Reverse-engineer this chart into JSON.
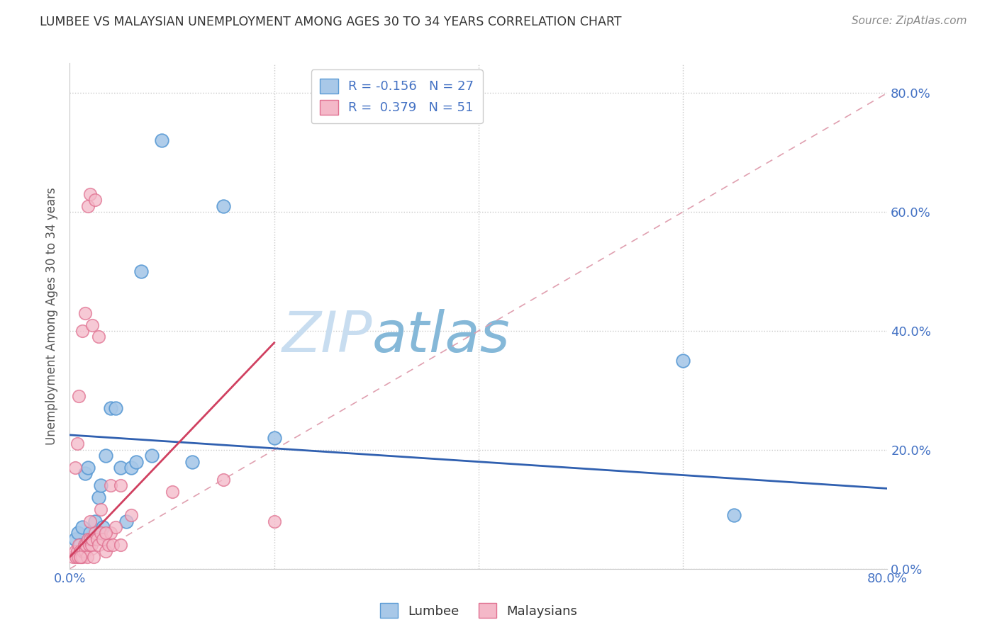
{
  "title": "LUMBEE VS MALAYSIAN UNEMPLOYMENT AMONG AGES 30 TO 34 YEARS CORRELATION CHART",
  "source": "Source: ZipAtlas.com",
  "ylabel": "Unemployment Among Ages 30 to 34 years",
  "x_min": 0.0,
  "x_max": 0.8,
  "y_min": 0.0,
  "y_max": 0.85,
  "lumbee_color": "#a8c8e8",
  "malaysian_color": "#f4b8c8",
  "lumbee_edge": "#5b9bd5",
  "malaysian_edge": "#e07090",
  "lumbee_line_color": "#3060b0",
  "malaysian_line_color": "#d04060",
  "diagonal_color": "#e0a0b0",
  "watermark_zip_color": "#c8ddf0",
  "watermark_atlas_color": "#85b8d8",
  "lumbee_x": [
    0.005,
    0.008,
    0.01,
    0.012,
    0.015,
    0.018,
    0.02,
    0.022,
    0.025,
    0.028,
    0.03,
    0.032,
    0.035,
    0.04,
    0.045,
    0.05,
    0.055,
    0.06,
    0.065,
    0.07,
    0.08,
    0.09,
    0.12,
    0.15,
    0.2,
    0.6,
    0.65
  ],
  "lumbee_y": [
    0.05,
    0.06,
    0.04,
    0.07,
    0.16,
    0.17,
    0.06,
    0.05,
    0.08,
    0.12,
    0.14,
    0.07,
    0.19,
    0.27,
    0.27,
    0.17,
    0.08,
    0.17,
    0.18,
    0.5,
    0.19,
    0.72,
    0.18,
    0.61,
    0.22,
    0.35,
    0.09
  ],
  "malaysian_x": [
    0.003,
    0.005,
    0.006,
    0.007,
    0.008,
    0.009,
    0.01,
    0.011,
    0.012,
    0.013,
    0.014,
    0.015,
    0.016,
    0.017,
    0.018,
    0.019,
    0.02,
    0.021,
    0.022,
    0.023,
    0.025,
    0.027,
    0.028,
    0.03,
    0.032,
    0.035,
    0.038,
    0.04,
    0.042,
    0.045,
    0.005,
    0.007,
    0.009,
    0.012,
    0.015,
    0.018,
    0.02,
    0.022,
    0.025,
    0.028,
    0.04,
    0.05,
    0.06,
    0.1,
    0.15,
    0.2,
    0.01,
    0.02,
    0.03,
    0.035,
    0.05
  ],
  "malaysian_y": [
    0.02,
    0.03,
    0.02,
    0.03,
    0.02,
    0.04,
    0.03,
    0.02,
    0.02,
    0.03,
    0.04,
    0.03,
    0.04,
    0.02,
    0.05,
    0.04,
    0.05,
    0.04,
    0.05,
    0.02,
    0.06,
    0.05,
    0.04,
    0.06,
    0.05,
    0.03,
    0.04,
    0.06,
    0.04,
    0.07,
    0.17,
    0.21,
    0.29,
    0.4,
    0.43,
    0.61,
    0.63,
    0.41,
    0.62,
    0.39,
    0.14,
    0.14,
    0.09,
    0.13,
    0.15,
    0.08,
    0.02,
    0.08,
    0.1,
    0.06,
    0.04
  ],
  "lumbee_line_x0": 0.0,
  "lumbee_line_y0": 0.225,
  "lumbee_line_x1": 0.8,
  "lumbee_line_y1": 0.135,
  "malaysian_line_x0": 0.0,
  "malaysian_line_y0": 0.02,
  "malaysian_line_x1": 0.2,
  "malaysian_line_y1": 0.38
}
